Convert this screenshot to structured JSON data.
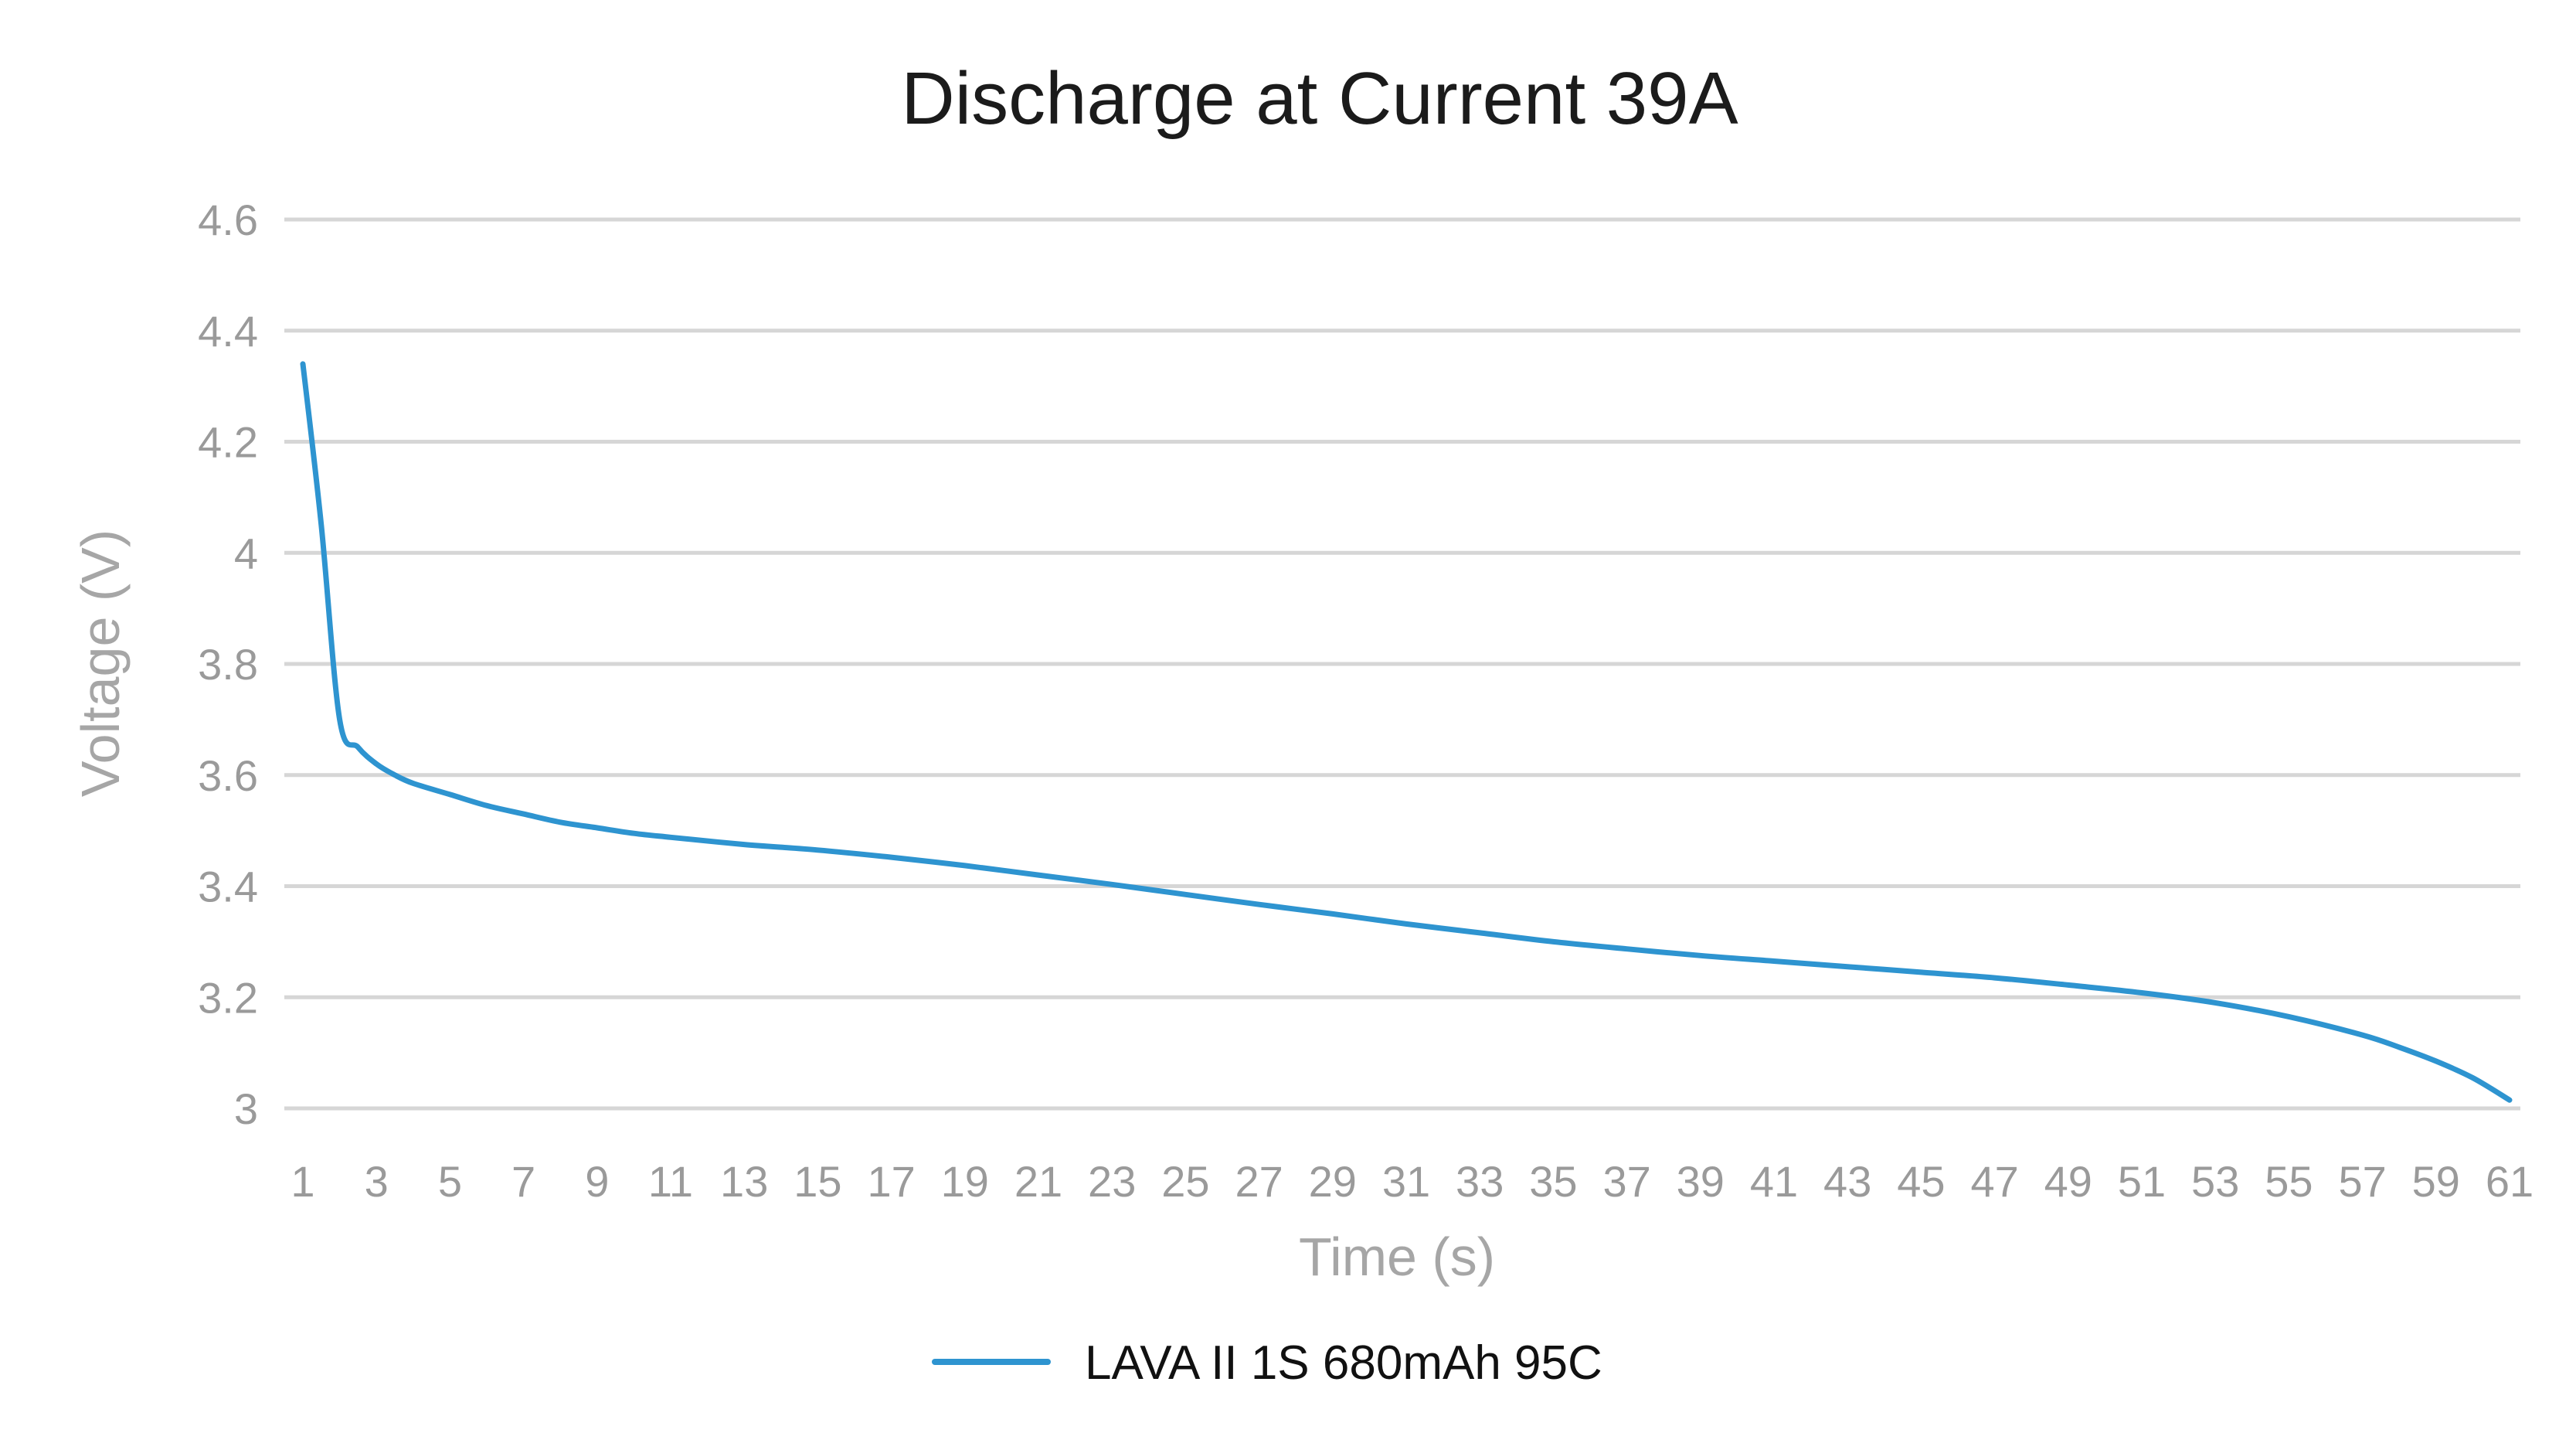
{
  "chart_data": {
    "type": "line",
    "title": "Discharge at Current 39A",
    "xlabel": "Time (s)",
    "ylabel": "Voltage (V)",
    "ylim": [
      3,
      4.6
    ],
    "yticks": [
      "3",
      "3.2",
      "3.4",
      "3.6",
      "3.8",
      "4",
      "4.2",
      "4.4",
      "4.6"
    ],
    "xlim": [
      1,
      61
    ],
    "xticks": [
      "1",
      "3",
      "5",
      "7",
      "9",
      "11",
      "13",
      "15",
      "17",
      "19",
      "21",
      "23",
      "25",
      "27",
      "29",
      "31",
      "33",
      "35",
      "37",
      "39",
      "41",
      "43",
      "45",
      "47",
      "49",
      "51",
      "53",
      "55",
      "57",
      "59",
      "61"
    ],
    "grid": true,
    "legend_position": "bottom",
    "x": [
      1,
      1.5,
      2,
      2.5,
      3,
      3.5,
      4,
      5,
      6,
      7,
      8,
      9,
      10,
      11,
      13,
      15,
      17,
      19,
      21,
      23,
      25,
      27,
      29,
      31,
      33,
      35,
      37,
      39,
      41,
      43,
      45,
      47,
      49,
      51,
      53,
      55,
      57,
      58,
      59,
      60,
      61
    ],
    "series": [
      {
        "name": "LAVA II 1S 680mAh 95C",
        "color": "#2e94d0",
        "values": [
          4.34,
          4.05,
          3.7,
          3.65,
          3.62,
          3.6,
          3.585,
          3.565,
          3.545,
          3.53,
          3.515,
          3.505,
          3.495,
          3.488,
          3.475,
          3.465,
          3.452,
          3.437,
          3.42,
          3.403,
          3.385,
          3.367,
          3.35,
          3.332,
          3.316,
          3.3,
          3.287,
          3.275,
          3.265,
          3.255,
          3.245,
          3.235,
          3.222,
          3.208,
          3.19,
          3.165,
          3.132,
          3.11,
          3.085,
          3.055,
          3.015
        ]
      }
    ]
  }
}
